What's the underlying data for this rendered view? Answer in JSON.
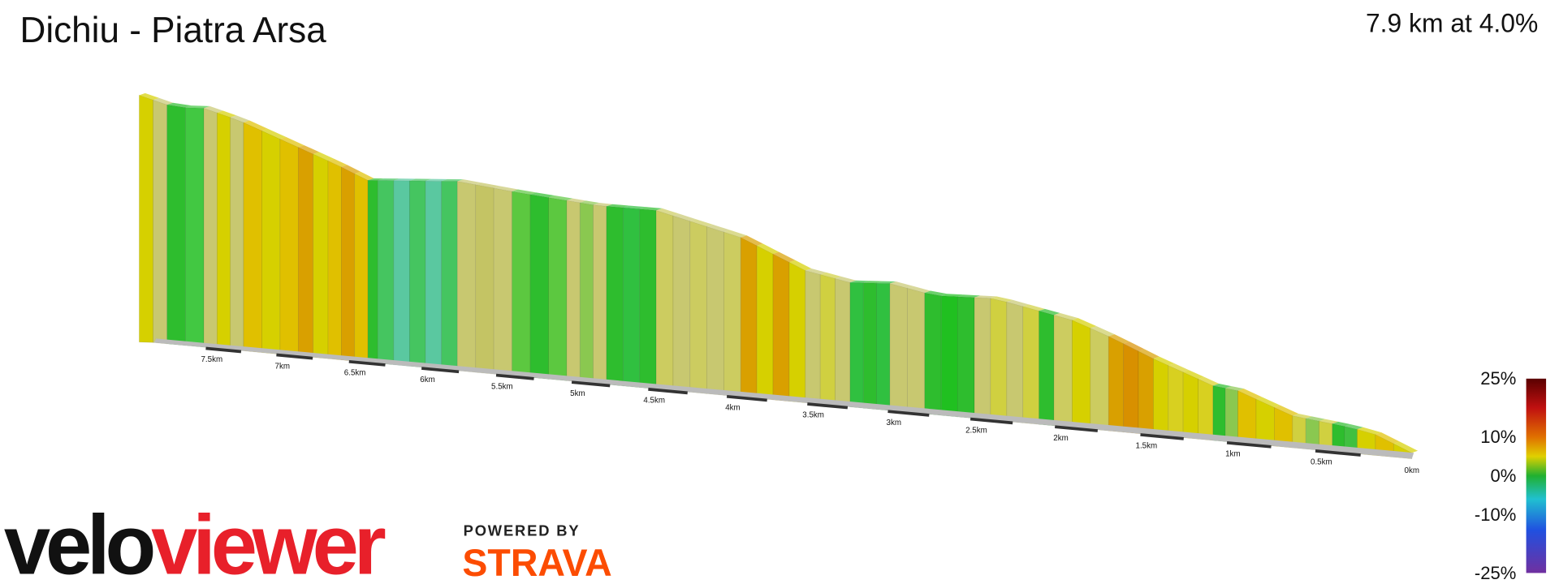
{
  "header": {
    "title": "Dichiu - Piatra Arsa",
    "stat": "7.9 km at 4.0%"
  },
  "distance_labels": [
    "7.5km",
    "7km",
    "6.5km",
    "6km",
    "5.5km",
    "5km",
    "4.5km",
    "4km",
    "3.5km",
    "3km",
    "2.5km",
    "2km",
    "1.5km",
    "1km",
    "0.5km",
    "0km"
  ],
  "scale_labels": [
    "25%",
    "10%",
    "0%",
    "-10%",
    "-25%"
  ],
  "logo": {
    "velo": "velo",
    "viewer": "viewer",
    "powered_by": "POWERED BY",
    "strava": "STRAVA"
  }
}
